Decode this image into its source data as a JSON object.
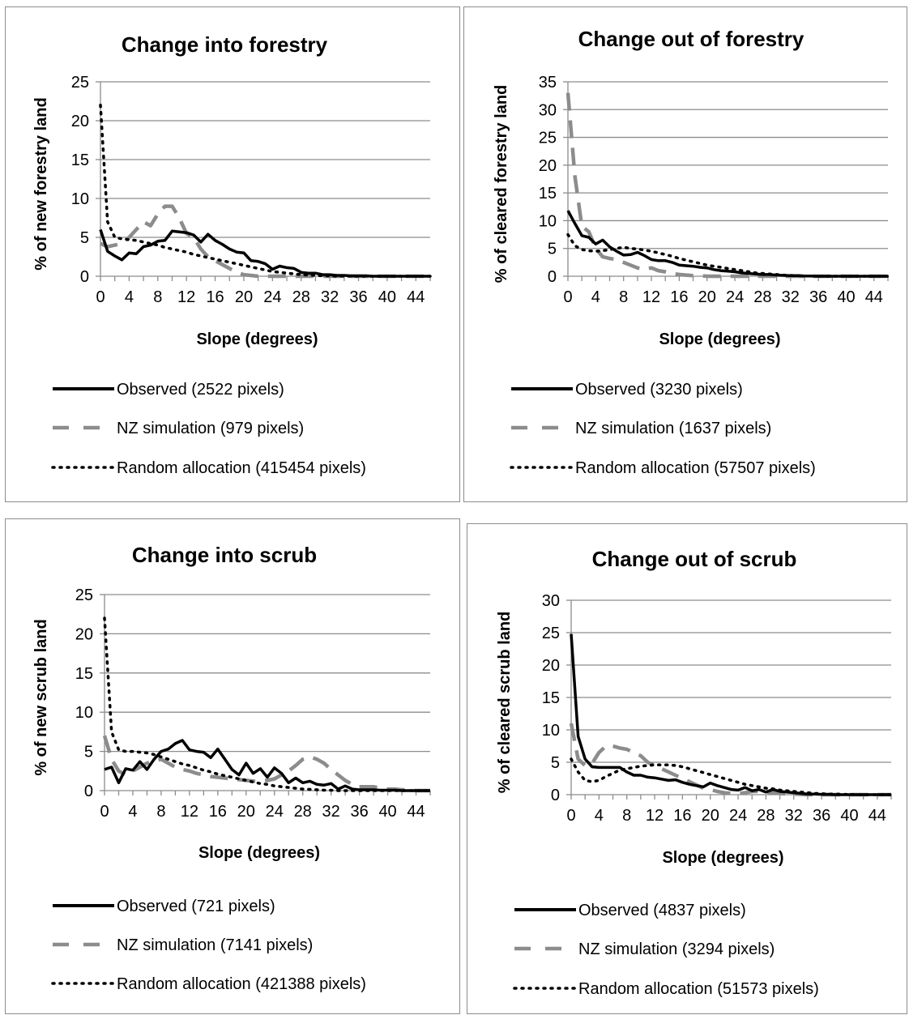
{
  "chart_data": [
    {
      "type": "line",
      "title": "Change into forestry",
      "xlabel": "Slope (degrees)",
      "ylabel": "% of new forestry land",
      "ylim": [
        0,
        25
      ],
      "yticks": [
        0,
        5,
        10,
        15,
        20,
        25
      ],
      "xticks": [
        0,
        4,
        8,
        12,
        16,
        20,
        24,
        28,
        32,
        36,
        40,
        44
      ],
      "grid": "horizontal",
      "legend": "bottom",
      "x": [
        0,
        1,
        2,
        3,
        4,
        5,
        6,
        7,
        8,
        9,
        10,
        11,
        12,
        13,
        14,
        15,
        16,
        17,
        18,
        19,
        20,
        21,
        22,
        23,
        24,
        25,
        26,
        27,
        28,
        29,
        30,
        31,
        32,
        33,
        34,
        35,
        36,
        37,
        38,
        39,
        40,
        41,
        42,
        43,
        44,
        45,
        46
      ],
      "series": [
        {
          "name": "Observed (2522 pixels)",
          "style": "solid",
          "color": "#000000",
          "values": [
            6.0,
            3.2,
            2.6,
            2.1,
            3.0,
            2.9,
            3.8,
            4.0,
            4.5,
            4.6,
            5.8,
            5.7,
            5.6,
            5.3,
            4.4,
            5.4,
            4.6,
            4.1,
            3.5,
            3.1,
            3.0,
            2.0,
            1.9,
            1.6,
            0.9,
            1.3,
            1.1,
            1.0,
            0.5,
            0.4,
            0.4,
            0.2,
            0.2,
            0.1,
            0.1,
            0.05,
            0.05,
            0.05,
            0.0,
            0.0,
            0.0,
            0.0,
            0.0,
            0.0,
            0.0,
            0.0,
            0.0
          ]
        },
        {
          "name": "NZ simulation (979 pixels)",
          "style": "dashed",
          "color": "#8c8c8c",
          "values": [
            4.2,
            3.8,
            4.0,
            4.2,
            5.0,
            6.0,
            7.0,
            6.5,
            8.0,
            9.0,
            9.0,
            7.5,
            5.5,
            5.0,
            3.5,
            2.5,
            2.0,
            1.5,
            1.0,
            0.5,
            0.2,
            0.1,
            0.0,
            0.0,
            0.0,
            0.0,
            0.0,
            0.0,
            0.0,
            0.0,
            0.0,
            0.0,
            0.0,
            0.0,
            0.0,
            0.0,
            0.0,
            0.0,
            0.0,
            0.0,
            0.0,
            0.0,
            0.0,
            0.0,
            0.0,
            0.0,
            0.0
          ]
        },
        {
          "name": "Random allocation (415454 pixels)",
          "style": "dotted",
          "color": "#000000",
          "values": [
            22.0,
            7.0,
            5.0,
            4.8,
            4.7,
            4.6,
            4.4,
            4.2,
            4.0,
            3.7,
            3.5,
            3.3,
            3.1,
            2.8,
            2.6,
            2.4,
            2.2,
            2.0,
            1.8,
            1.6,
            1.4,
            1.2,
            1.0,
            0.8,
            0.6,
            0.5,
            0.4,
            0.3,
            0.2,
            0.15,
            0.1,
            0.05,
            0.05,
            0.0,
            0.0,
            0.0,
            0.0,
            0.0,
            0.0,
            0.0,
            0.0,
            0.0,
            0.0,
            0.0,
            0.0,
            0.0,
            0.0
          ]
        }
      ]
    },
    {
      "type": "line",
      "title": "Change out of forestry",
      "xlabel": "Slope (degrees)",
      "ylabel": "% of cleared forestry land",
      "ylim": [
        0,
        35
      ],
      "yticks": [
        0,
        5,
        10,
        15,
        20,
        25,
        30,
        35
      ],
      "xticks": [
        0,
        4,
        8,
        12,
        16,
        20,
        24,
        28,
        32,
        36,
        40,
        44
      ],
      "grid": "horizontal",
      "legend": "bottom",
      "x": [
        0,
        1,
        2,
        3,
        4,
        5,
        6,
        7,
        8,
        9,
        10,
        11,
        12,
        13,
        14,
        15,
        16,
        17,
        18,
        19,
        20,
        21,
        22,
        23,
        24,
        25,
        26,
        27,
        28,
        29,
        30,
        31,
        32,
        33,
        34,
        35,
        36,
        37,
        38,
        39,
        40,
        41,
        42,
        43,
        44,
        45,
        46
      ],
      "series": [
        {
          "name": "Observed (3230 pixels)",
          "style": "solid",
          "color": "#000000",
          "values": [
            11.8,
            9.5,
            7.3,
            7.0,
            5.8,
            6.5,
            5.3,
            4.5,
            3.8,
            3.9,
            4.3,
            3.7,
            3.0,
            2.8,
            2.8,
            2.5,
            2.0,
            1.9,
            1.8,
            1.6,
            1.5,
            1.2,
            1.0,
            0.9,
            0.8,
            0.6,
            0.5,
            0.4,
            0.3,
            0.3,
            0.2,
            0.15,
            0.1,
            0.1,
            0.05,
            0.05,
            0.0,
            0.0,
            0.0,
            0.0,
            0.0,
            0.0,
            0.0,
            0.0,
            0.0,
            0.0,
            0.0
          ]
        },
        {
          "name": "NZ simulation (1637 pixels)",
          "style": "dashed",
          "color": "#8c8c8c",
          "values": [
            33.0,
            18.0,
            9.0,
            8.0,
            5.0,
            3.5,
            3.2,
            3.0,
            2.5,
            2.0,
            1.5,
            1.2,
            1.5,
            1.0,
            0.8,
            0.5,
            0.3,
            0.2,
            0.1,
            0.1,
            0.0,
            0.0,
            0.0,
            0.0,
            0.0,
            0.0,
            0.0,
            0.0,
            0.0,
            0.0,
            0.0,
            0.0,
            0.0,
            0.0,
            0.0,
            0.0,
            0.0,
            0.0,
            0.0,
            0.0,
            0.0,
            0.0,
            0.0,
            0.0,
            0.0,
            0.0,
            0.0
          ]
        },
        {
          "name": "Random allocation (57507 pixels)",
          "style": "dotted",
          "color": "#000000",
          "values": [
            7.5,
            5.5,
            4.8,
            4.6,
            4.5,
            4.6,
            4.8,
            5.0,
            5.2,
            5.0,
            4.9,
            4.7,
            4.5,
            4.2,
            3.9,
            3.6,
            3.2,
            2.9,
            2.6,
            2.3,
            2.0,
            1.8,
            1.6,
            1.4,
            1.2,
            1.0,
            0.8,
            0.6,
            0.5,
            0.4,
            0.3,
            0.2,
            0.15,
            0.1,
            0.05,
            0.05,
            0.0,
            0.0,
            0.0,
            0.0,
            0.0,
            0.0,
            0.0,
            0.0,
            0.0,
            0.0,
            0.0
          ]
        }
      ]
    },
    {
      "type": "line",
      "title": "Change into scrub",
      "xlabel": "Slope (degrees)",
      "ylabel": "% of new scrub land",
      "ylim": [
        0,
        25
      ],
      "yticks": [
        0,
        5,
        10,
        15,
        20,
        25
      ],
      "xticks": [
        0,
        4,
        8,
        12,
        16,
        20,
        24,
        28,
        32,
        36,
        40,
        44
      ],
      "grid": "horizontal",
      "legend": "bottom",
      "x": [
        0,
        1,
        2,
        3,
        4,
        5,
        6,
        7,
        8,
        9,
        10,
        11,
        12,
        13,
        14,
        15,
        16,
        17,
        18,
        19,
        20,
        21,
        22,
        23,
        24,
        25,
        26,
        27,
        28,
        29,
        30,
        31,
        32,
        33,
        34,
        35,
        36,
        37,
        38,
        39,
        40,
        41,
        42,
        43,
        44,
        45,
        46
      ],
      "series": [
        {
          "name": "Observed (721 pixels)",
          "style": "solid",
          "color": "#000000",
          "values": [
            2.7,
            3.0,
            1.0,
            2.8,
            2.6,
            3.7,
            2.7,
            4.0,
            5.0,
            5.3,
            6.0,
            6.4,
            5.2,
            5.0,
            4.9,
            4.2,
            5.3,
            4.0,
            2.7,
            2.0,
            3.5,
            2.2,
            2.8,
            1.7,
            2.9,
            2.2,
            1.0,
            1.6,
            1.0,
            1.2,
            0.8,
            0.7,
            0.9,
            0.2,
            0.6,
            0.2,
            0.1,
            0.1,
            0.1,
            0.05,
            0.05,
            0.05,
            0.0,
            0.0,
            0.0,
            0.0,
            0.0
          ]
        },
        {
          "name": "NZ simulation (7141 pixels)",
          "style": "dashed",
          "color": "#8c8c8c",
          "values": [
            7.0,
            4.0,
            2.5,
            2.0,
            2.5,
            3.0,
            3.5,
            3.8,
            4.0,
            3.5,
            3.0,
            2.7,
            2.5,
            2.2,
            2.0,
            1.8,
            1.7,
            1.6,
            1.5,
            1.4,
            1.3,
            1.2,
            1.2,
            1.3,
            1.5,
            2.0,
            2.5,
            3.2,
            4.0,
            4.3,
            4.0,
            3.5,
            2.7,
            2.0,
            1.3,
            0.8,
            0.5,
            0.5,
            0.5,
            0.3,
            0.2,
            0.2,
            0.1,
            0.1,
            0.0,
            0.0,
            0.0
          ]
        },
        {
          "name": "Random allocation (421388 pixels)",
          "style": "dotted",
          "color": "#000000",
          "values": [
            22.0,
            7.5,
            5.2,
            5.0,
            5.0,
            4.9,
            4.8,
            4.6,
            4.3,
            4.0,
            3.7,
            3.4,
            3.2,
            2.9,
            2.6,
            2.4,
            2.1,
            1.9,
            1.7,
            1.5,
            1.3,
            1.1,
            0.9,
            0.8,
            0.6,
            0.5,
            0.4,
            0.3,
            0.2,
            0.15,
            0.1,
            0.05,
            0.05,
            0.0,
            0.0,
            0.0,
            0.0,
            0.0,
            0.0,
            0.0,
            0.0,
            0.0,
            0.0,
            0.0,
            0.0,
            0.0,
            0.0
          ]
        }
      ]
    },
    {
      "type": "line",
      "title": "Change out of scrub",
      "xlabel": "Slope (degrees)",
      "ylabel": "% of cleared scrub land",
      "ylim": [
        0,
        30
      ],
      "yticks": [
        0,
        5,
        10,
        15,
        20,
        25,
        30
      ],
      "xticks": [
        0,
        4,
        8,
        12,
        16,
        20,
        24,
        28,
        32,
        36,
        40,
        44
      ],
      "grid": "horizontal",
      "legend": "bottom",
      "x": [
        0,
        1,
        2,
        3,
        4,
        5,
        6,
        7,
        8,
        9,
        10,
        11,
        12,
        13,
        14,
        15,
        16,
        17,
        18,
        19,
        20,
        21,
        22,
        23,
        24,
        25,
        26,
        27,
        28,
        29,
        30,
        31,
        32,
        33,
        34,
        35,
        36,
        37,
        38,
        39,
        40,
        41,
        42,
        43,
        44,
        45,
        46
      ],
      "series": [
        {
          "name": "Observed (4837 pixels)",
          "style": "solid",
          "color": "#000000",
          "values": [
            24.8,
            9.0,
            5.5,
            4.3,
            4.2,
            4.2,
            4.2,
            4.2,
            3.5,
            3.0,
            3.0,
            2.7,
            2.6,
            2.4,
            2.2,
            2.3,
            1.9,
            1.6,
            1.4,
            1.2,
            1.8,
            1.4,
            1.1,
            0.8,
            0.7,
            1.1,
            0.6,
            0.8,
            0.4,
            0.8,
            0.5,
            0.4,
            0.3,
            0.2,
            0.1,
            0.1,
            0.05,
            0.05,
            0.0,
            0.0,
            0.0,
            0.0,
            0.0,
            0.0,
            0.0,
            0.0,
            0.0
          ]
        },
        {
          "name": "NZ simulation (3294 pixels)",
          "style": "dashed",
          "color": "#8c8c8c",
          "values": [
            11.0,
            5.5,
            4.5,
            4.8,
            6.5,
            7.5,
            7.5,
            7.2,
            7.0,
            6.5,
            6.0,
            5.0,
            4.5,
            4.0,
            3.5,
            3.0,
            2.5,
            2.0,
            1.5,
            1.0,
            0.8,
            0.5,
            0.3,
            0.2,
            0.2,
            0.3,
            0.5,
            0.5,
            0.4,
            0.3,
            0.2,
            0.1,
            0.1,
            0.05,
            0.0,
            0.0,
            0.0,
            0.0,
            0.0,
            0.0,
            0.0,
            0.0,
            0.0,
            0.0,
            0.0,
            0.0,
            0.0
          ]
        },
        {
          "name": "Random allocation (51573 pixels)",
          "style": "dotted",
          "color": "#000000",
          "values": [
            5.5,
            3.5,
            2.2,
            2.0,
            2.2,
            2.8,
            3.3,
            3.8,
            4.0,
            4.2,
            4.4,
            4.5,
            4.6,
            4.6,
            4.6,
            4.5,
            4.3,
            4.0,
            3.7,
            3.4,
            3.1,
            2.8,
            2.5,
            2.2,
            1.9,
            1.6,
            1.4,
            1.2,
            1.0,
            0.9,
            0.7,
            0.6,
            0.5,
            0.4,
            0.3,
            0.2,
            0.15,
            0.1,
            0.1,
            0.05,
            0.05,
            0.0,
            0.0,
            0.0,
            0.0,
            0.0,
            0.0
          ]
        }
      ]
    }
  ]
}
